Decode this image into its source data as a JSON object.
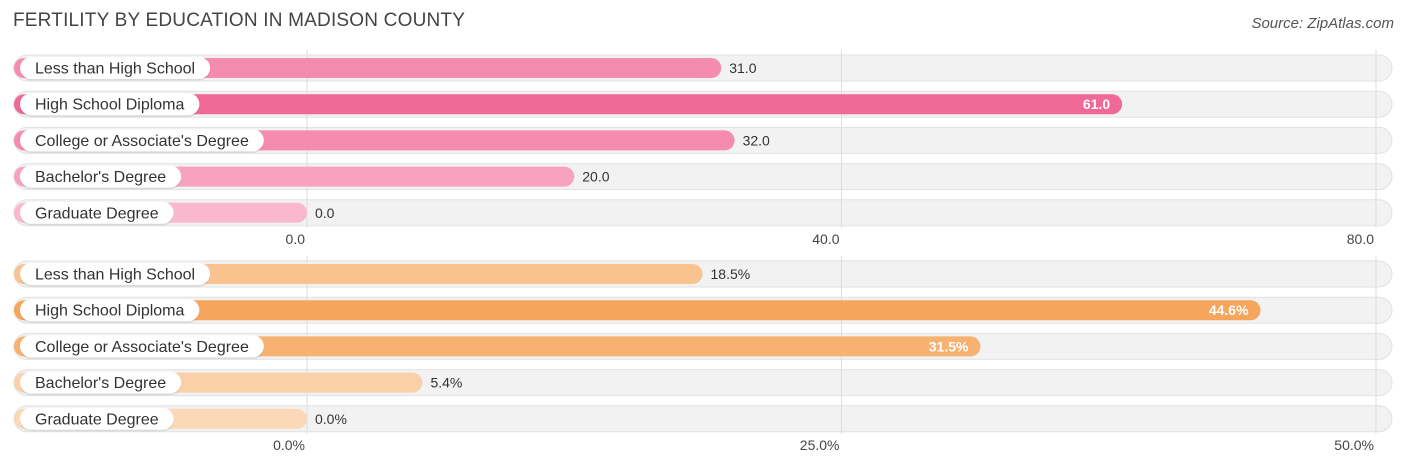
{
  "header": {
    "title": "FERTILITY BY EDUCATION IN MADISON COUNTY",
    "source": "Source: ZipAtlas.com"
  },
  "chart_data": [
    {
      "type": "bar",
      "orientation": "horizontal",
      "categories": [
        "Less than High School",
        "High School Diploma",
        "College or Associate's Degree",
        "Bachelor's Degree",
        "Graduate Degree"
      ],
      "values": [
        31.0,
        61.0,
        32.0,
        20.0,
        0.0
      ],
      "value_labels": [
        "31.0",
        "61.0",
        "32.0",
        "20.0",
        "0.0"
      ],
      "xlim": [
        0,
        80
      ],
      "ticks": [
        0,
        40,
        80
      ],
      "tick_labels": [
        "0.0",
        "40.0",
        "80.0"
      ],
      "colors": [
        "#f58cb0",
        "#f06895",
        "#f58cb0",
        "#f7a3c0",
        "#f9b8ce"
      ],
      "highlight_color": "#f06895",
      "grid": true
    },
    {
      "type": "bar",
      "orientation": "horizontal",
      "categories": [
        "Less than High School",
        "High School Diploma",
        "College or Associate's Degree",
        "Bachelor's Degree",
        "Graduate Degree"
      ],
      "values": [
        18.5,
        44.6,
        31.5,
        5.4,
        0.0
      ],
      "value_labels": [
        "18.5%",
        "44.6%",
        "31.5%",
        "5.4%",
        "0.0%"
      ],
      "xlim": [
        0,
        50
      ],
      "ticks": [
        0,
        25,
        50
      ],
      "tick_labels": [
        "0.0%",
        "25.0%",
        "50.0%"
      ],
      "colors": [
        "#f9c390",
        "#f5a55c",
        "#f7b170",
        "#fad0a8",
        "#fbd8b8"
      ],
      "highlight_color": "#f5a55c",
      "grid": true
    }
  ]
}
